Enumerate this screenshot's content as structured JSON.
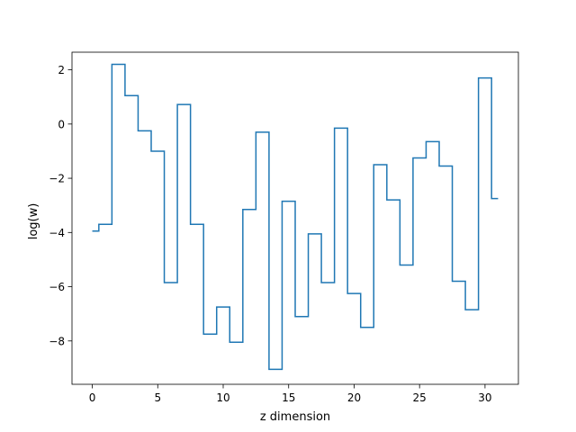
{
  "chart_data": {
    "type": "line",
    "drawstyle": "steps-mid",
    "title": "",
    "xlabel": "z dimension",
    "ylabel": "log(w)",
    "xlim": [
      -1.55,
      32.55
    ],
    "ylim": [
      -9.6,
      2.65
    ],
    "xticks": [
      0,
      5,
      10,
      15,
      20,
      25,
      30
    ],
    "yticks": [
      -8,
      -6,
      -4,
      -2,
      0,
      2
    ],
    "xtick_labels": [
      "0",
      "5",
      "10",
      "15",
      "20",
      "25",
      "30"
    ],
    "ytick_labels": [
      "−8",
      "−6",
      "−4",
      "−2",
      "0",
      "2"
    ],
    "grid": false,
    "line_color": "#1f77b4",
    "x": [
      0,
      1,
      2,
      3,
      4,
      5,
      6,
      7,
      8,
      9,
      10,
      11,
      12,
      13,
      14,
      15,
      16,
      17,
      18,
      19,
      20,
      21,
      22,
      23,
      24,
      25,
      26,
      27,
      28,
      29,
      30,
      31
    ],
    "y": [
      -3.95,
      -3.7,
      2.2,
      1.05,
      -0.25,
      -1.0,
      -5.85,
      0.72,
      -3.7,
      -7.75,
      -6.75,
      -8.05,
      -3.15,
      -0.3,
      -9.05,
      -2.85,
      -7.1,
      -4.05,
      -5.85,
      -0.15,
      -6.25,
      -7.5,
      -1.5,
      -2.8,
      -5.2,
      -1.25,
      -0.65,
      -1.55,
      -5.8,
      -6.85,
      1.7,
      -2.75
    ]
  }
}
